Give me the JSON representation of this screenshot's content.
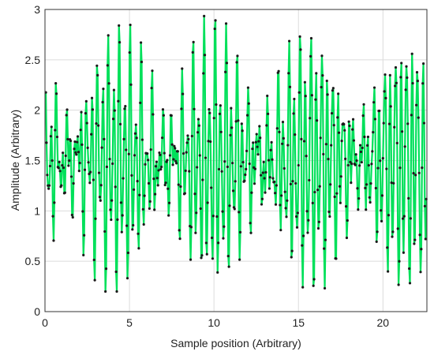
{
  "chart_data": {
    "type": "line",
    "title": "",
    "xlabel": "Sample position (Arbitrary)",
    "ylabel": "Amplitude (Arbitrary)",
    "xlim": [
      0,
      22.6
    ],
    "ylim": [
      0,
      3
    ],
    "x_ticks": [
      0,
      5,
      10,
      15,
      20
    ],
    "y_ticks": [
      0,
      0.5,
      1,
      1.5,
      2,
      2.5,
      3
    ],
    "x_tick_labels": [
      "0",
      "5",
      "10",
      "15",
      "20"
    ],
    "y_tick_labels": [
      "0",
      "0.5",
      "1",
      "1.5",
      "2",
      "2.5",
      "3"
    ],
    "grid": true,
    "legend": "none",
    "series": [
      {
        "style": "line with sample markers",
        "line_color": "#00e05a",
        "marker_color": "#1a1a1a",
        "x_start": 0.05,
        "x_step": 0.042,
        "signal": {
          "offset": 1.5,
          "envelope": [
            {
              "amplitude": 0.5,
              "frequency": 3.0,
              "phase": 0.3
            },
            {
              "amplitude": 0.5,
              "frequency": 3.175,
              "phase": 1.9
            },
            {
              "amplitude": 0.25,
              "frequency": 1.6,
              "phase": 0.8
            },
            {
              "amplitude": 0.25,
              "frequency": 4.55,
              "phase": 2.4
            }
          ],
          "y_min": 0.2,
          "y_max": 3.0
        }
      }
    ]
  }
}
